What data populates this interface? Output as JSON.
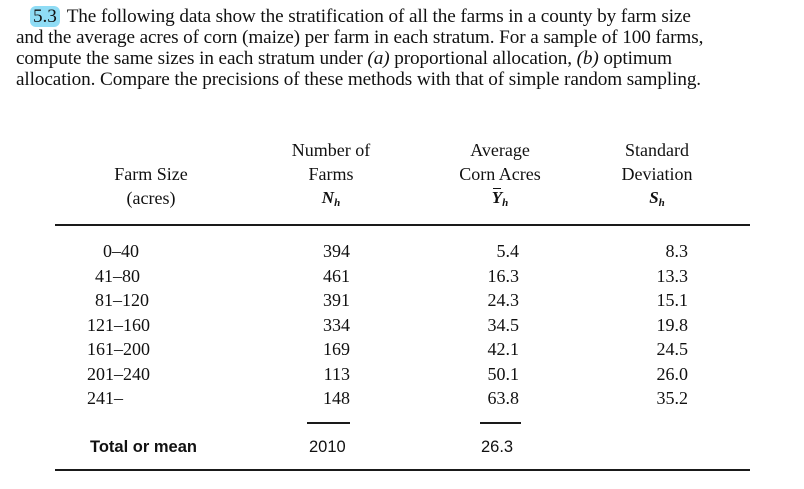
{
  "problem": {
    "number": "5.3",
    "lines": [
      "The following data show the stratification of all the farms in a county by farm size",
      "and the average acres of corn (maize) per farm in each stratum. For a sample of 100 farms,",
      "compute the same sizes in each stratum under (a) proportional allocation, (b) optimum",
      "allocation. Compare the precisions of these methods with that of simple random sampling."
    ],
    "line3_parts": {
      "pre": "compute the same sizes in each stratum under ",
      "a": "(a)",
      "mid": " proportional allocation, ",
      "b": "(b)",
      "post": " optimum"
    }
  },
  "table": {
    "headers": {
      "farm_size": [
        "Farm Size",
        "(acres)"
      ],
      "number_of_farms": [
        "Number of",
        "Farms",
        "N",
        "h"
      ],
      "average_corn": [
        "Average",
        "Corn Acres",
        "Y",
        "h"
      ],
      "std_dev": [
        "Standard",
        "Deviation",
        "S",
        "h"
      ]
    },
    "rows": [
      {
        "size": "0–40",
        "N": "394",
        "Y": "5.4",
        "S": "8.3"
      },
      {
        "size": "41–80",
        "N": "461",
        "Y": "16.3",
        "S": "13.3"
      },
      {
        "size": "81–120",
        "N": "391",
        "Y": "24.3",
        "S": "15.1"
      },
      {
        "size": "121–160",
        "N": "334",
        "Y": "34.5",
        "S": "19.8"
      },
      {
        "size": "161–200",
        "N": "169",
        "Y": "42.1",
        "S": "24.5"
      },
      {
        "size": "201–240",
        "N": "113",
        "Y": "50.1",
        "S": "26.0"
      },
      {
        "size": "241–",
        "N": "148",
        "Y": "63.8",
        "S": "35.2"
      }
    ],
    "total": {
      "label": "Total or mean",
      "N": "2010",
      "Y": "26.3"
    }
  },
  "colors": {
    "highlight": "#8fdcf5",
    "text": "#111111"
  }
}
